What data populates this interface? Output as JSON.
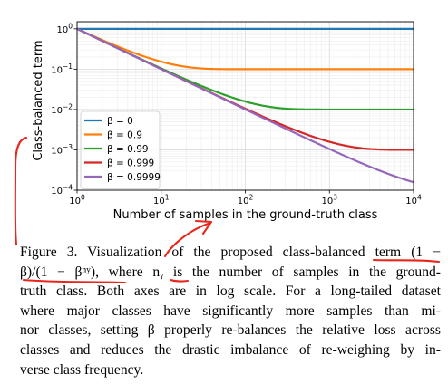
{
  "chart_data": {
    "type": "line",
    "x_scale": "log",
    "y_scale": "log",
    "xlim": [
      1,
      10000
    ],
    "ylim": [
      0.0001,
      1.5
    ],
    "xlabel": "Number of samples in the ground-truth class",
    "ylabel": "Class-balanced term",
    "x_ticks": [
      {
        "v": 1,
        "base": "10",
        "exp": "0"
      },
      {
        "v": 10,
        "base": "10",
        "exp": "1"
      },
      {
        "v": 100,
        "base": "10",
        "exp": "2"
      },
      {
        "v": 1000,
        "base": "10",
        "exp": "3"
      },
      {
        "v": 10000,
        "base": "10",
        "exp": "4"
      }
    ],
    "y_ticks": [
      {
        "v": 1,
        "base": "10",
        "exp": "0"
      },
      {
        "v": 0.1,
        "base": "10",
        "exp": "−1"
      },
      {
        "v": 0.01,
        "base": "10",
        "exp": "−2"
      },
      {
        "v": 0.001,
        "base": "10",
        "exp": "−3"
      },
      {
        "v": 0.0001,
        "base": "10",
        "exp": "−4"
      }
    ],
    "grid": true,
    "legend_position": "lower-left",
    "series": [
      {
        "name": "β = 0",
        "beta": 0,
        "color": "#1f77b4"
      },
      {
        "name": "β = 0.9",
        "beta": 0.9,
        "color": "#ff7f0e"
      },
      {
        "name": "β = 0.99",
        "beta": 0.99,
        "color": "#2ca02c"
      },
      {
        "name": "β = 0.999",
        "beta": 0.999,
        "color": "#d62728"
      },
      {
        "name": "β = 0.9999",
        "beta": 0.9999,
        "color": "#9467bd"
      }
    ]
  },
  "caption": {
    "lines": [
      "Figure 3. Visualization of the proposed class-balanced term (1 −",
      "β)/(1 − βⁿʸ), where nᵧ is the number of samples in the ground-",
      "truth class.  Both axes are in log scale.  For a long-tailed dataset",
      "where major classes have significantly more samples than mi-",
      "nor classes, setting β properly re-balances the relative loss across",
      "classes and reduces the drastic imbalance of re-weighing by in-",
      "verse class frequency."
    ]
  },
  "annotation_color": "#e8271c"
}
